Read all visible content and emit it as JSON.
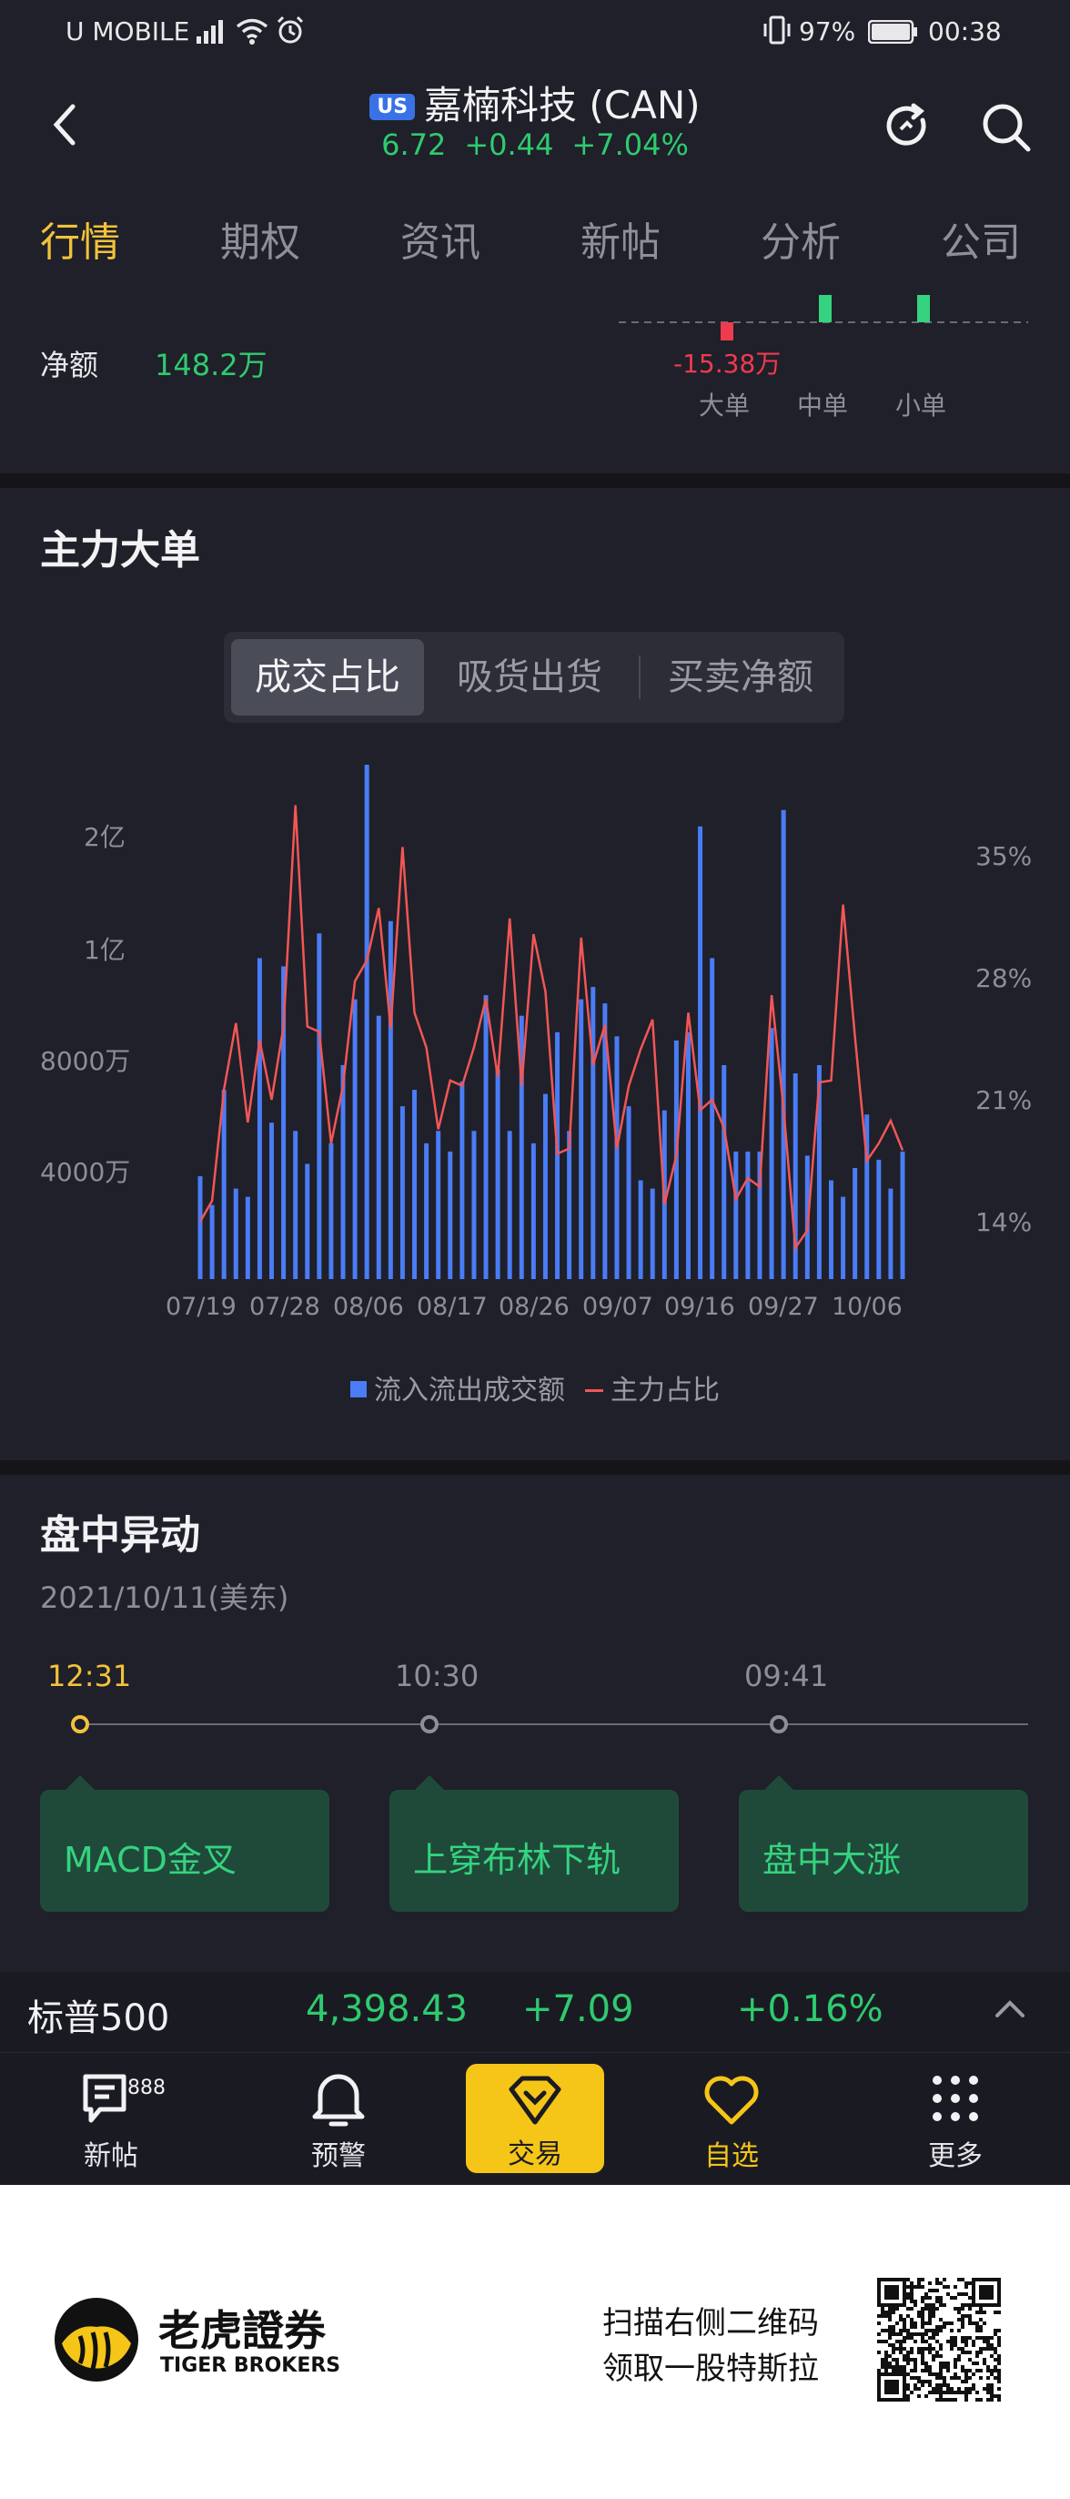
{
  "status_bar": {
    "carrier": "U MOBILE",
    "battery": "97%",
    "time": "00:38"
  },
  "header": {
    "badge": "US",
    "title": "嘉楠科技 (CAN)",
    "price": "6.72",
    "change": "+0.44",
    "change_pct": "+7.04%",
    "quote_color": "#2fca6f"
  },
  "tabs": [
    "行情",
    "期权",
    "资讯",
    "新帖",
    "分析",
    "公司"
  ],
  "active_tab": "行情",
  "net_flow": {
    "label": "净额",
    "value": "148.2万",
    "big_order_value": "-15.38万",
    "categories": [
      "大单",
      "中单",
      "小单"
    ]
  },
  "main_force": {
    "title": "主力大单",
    "segments": [
      "成交占比",
      "吸货出货",
      "买卖净额"
    ],
    "active_segment": "成交占比"
  },
  "chart_data": {
    "type": "bar",
    "x": [
      "07/19",
      "07/20",
      "07/21",
      "07/22",
      "07/23",
      "07/26",
      "07/27",
      "07/28",
      "07/29",
      "07/30",
      "08/02",
      "08/03",
      "08/04",
      "08/05",
      "08/06",
      "08/09",
      "08/10",
      "08/11",
      "08/12",
      "08/13",
      "08/16",
      "08/17",
      "08/18",
      "08/19",
      "08/20",
      "08/23",
      "08/24",
      "08/25",
      "08/26",
      "08/27",
      "08/30",
      "08/31",
      "09/01",
      "09/02",
      "09/03",
      "09/07",
      "09/08",
      "09/09",
      "09/10",
      "09/13",
      "09/14",
      "09/15",
      "09/16",
      "09/17",
      "09/20",
      "09/21",
      "09/22",
      "09/23",
      "09/24",
      "09/27",
      "09/28",
      "09/29",
      "09/30",
      "10/01",
      "10/04",
      "10/05",
      "10/06",
      "10/07",
      "10/08",
      "10/11"
    ],
    "x_tick_labels": [
      "07/19",
      "07/28",
      "08/06",
      "08/17",
      "08/26",
      "09/07",
      "09/16",
      "09/27",
      "10/06"
    ],
    "y_left_ticks": [
      "4000万",
      "8000万",
      "1亿",
      "2亿"
    ],
    "y_right_ticks": [
      "14%",
      "21%",
      "28%",
      "35%"
    ],
    "series": [
      {
        "name": "流入流出成交额",
        "axis": "left",
        "color": "#4a7cf5",
        "values": [
          25,
          18,
          46,
          22,
          20,
          78,
          38,
          76,
          36,
          28,
          84,
          33,
          52,
          68,
          125,
          64,
          87,
          42,
          46,
          33,
          36,
          31,
          48,
          36,
          69,
          51,
          36,
          64,
          33,
          45,
          60,
          36,
          68,
          71,
          67,
          59,
          42,
          24,
          22,
          41,
          58,
          60,
          110,
          78,
          52,
          31,
          31,
          31,
          61,
          114,
          50,
          30,
          52,
          24,
          20,
          27,
          40,
          29,
          22,
          31
        ],
        "max": 125
      },
      {
        "name": "主力占比",
        "axis": "right",
        "color": "#f25656",
        "values": [
          14.0,
          15.2,
          21.6,
          25.4,
          19.7,
          24.4,
          21.0,
          25.2,
          37.9,
          25.2,
          24.9,
          18.5,
          21.8,
          27.8,
          29.0,
          32.0,
          25.1,
          35.5,
          26.0,
          24.0,
          19.3,
          22.1,
          21.8,
          24.0,
          26.8,
          22.3,
          31.4,
          21.8,
          30.5,
          27.2,
          17.9,
          18.2,
          30.3,
          23.0,
          25.3,
          18.2,
          21.8,
          23.9,
          25.6,
          15.0,
          17.8,
          26.0,
          20.4,
          21.0,
          19.4,
          15.3,
          16.5,
          16.0,
          27.0,
          20.5,
          12.5,
          13.5,
          22.0,
          22.1,
          32.2,
          24.6,
          17.5,
          18.5,
          19.8,
          18.1
        ],
        "unit": "%"
      }
    ],
    "legend_position": "bottom"
  },
  "intraday": {
    "title": "盘中异动",
    "date": "2021/10/11(美东)",
    "events": [
      {
        "time": "12:31",
        "label": "MACD金叉"
      },
      {
        "time": "10:30",
        "label": "上穿布林下轨"
      },
      {
        "time": "09:41",
        "label": "盘中大涨"
      }
    ],
    "active_color": "#f2c23a"
  },
  "index_bar": {
    "name": "标普500",
    "value": "4,398.43",
    "change": "+7.09",
    "change_pct": "+0.16%"
  },
  "bottom_nav": {
    "items": [
      "新帖",
      "预警",
      "交易",
      "自选",
      "更多"
    ],
    "badge": "888",
    "active": "自选"
  },
  "promo": {
    "brand_cn": "老虎證券",
    "brand_en": "TIGER BROKERS",
    "line1": "扫描右侧二维码",
    "line2": "领取一股特斯拉"
  }
}
